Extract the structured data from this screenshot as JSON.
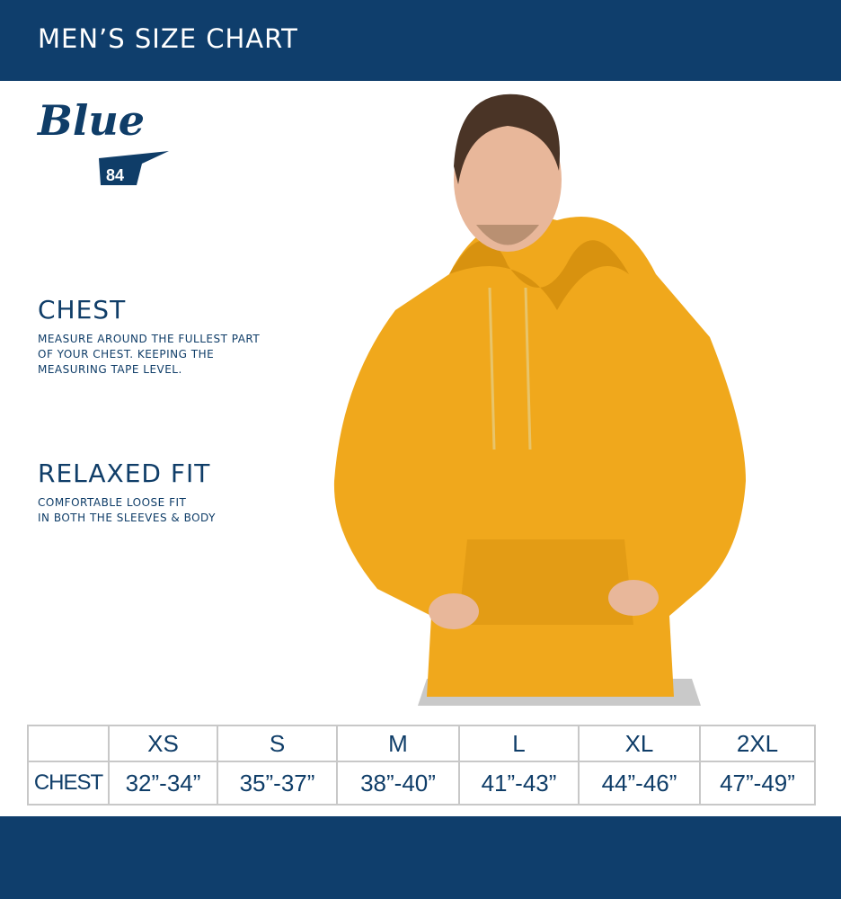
{
  "header": {
    "title": "MEN’S SIZE CHART"
  },
  "logo": {
    "text": "Blue",
    "number": "84"
  },
  "chest": {
    "title": "CHEST",
    "lines": [
      "MEASURE AROUND THE FULLEST PART",
      "OF YOUR CHEST. KEEPING THE",
      "MEASURING TAPE LEVEL."
    ]
  },
  "fit": {
    "title": "RELAXED FIT",
    "lines": [
      "COMFORTABLE LOOSE FIT",
      "IN BOTH THE SLEEVES &  BODY"
    ]
  },
  "size_table": {
    "sizes": [
      "XS",
      "S",
      "M",
      "L",
      "XL",
      "2XL"
    ],
    "row_label": "CHEST",
    "values": [
      "32”-34”",
      "35”-37”",
      "38”-40”",
      "41”-43”",
      "44”-46”",
      "47”-49”"
    ]
  },
  "colors": {
    "navy": "#0f3e6c",
    "hoodie": "#f0a81c",
    "border": "#c8c8c8"
  }
}
